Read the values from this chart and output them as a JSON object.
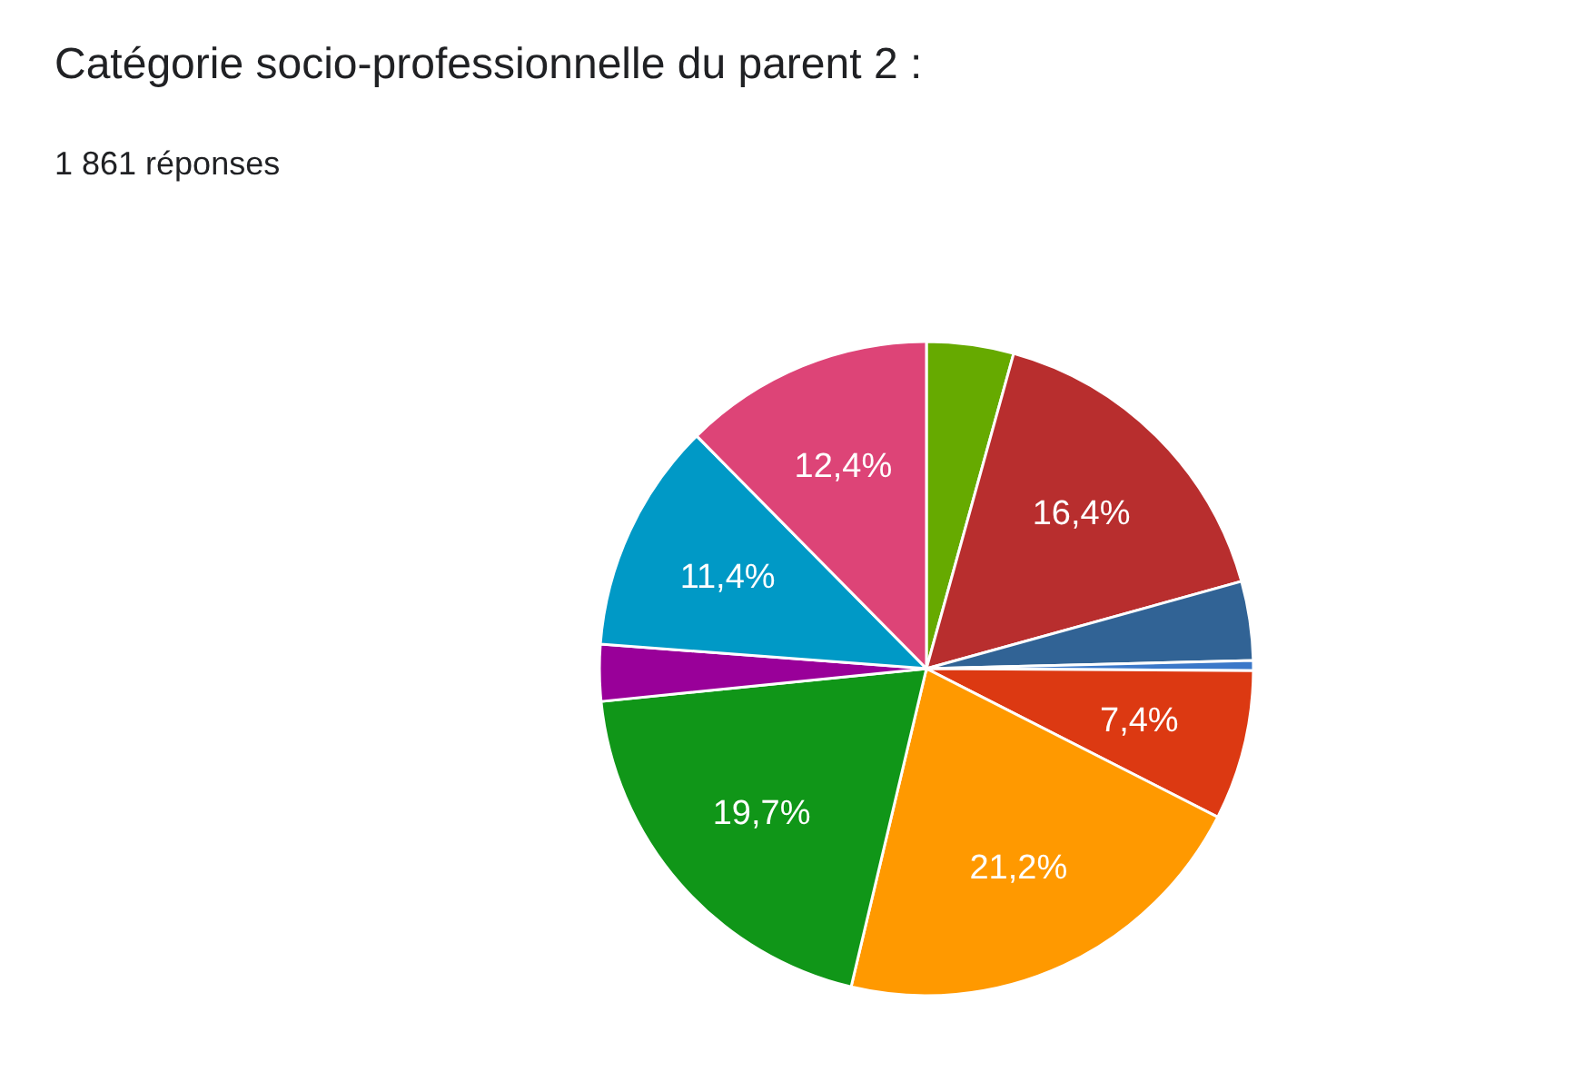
{
  "chart_data": {
    "type": "pie",
    "title": "Catégorie socio-professionnelle du parent 2 :",
    "subtitle": "1 861 réponses",
    "categories": [
      null,
      null,
      null,
      null,
      null,
      null,
      null,
      null,
      null,
      null
    ],
    "values": [
      4.3,
      16.4,
      3.9,
      0.5,
      7.4,
      21.2,
      19.7,
      2.8,
      11.4,
      12.4
    ],
    "colors": [
      "#66aa00",
      "#b82e2e",
      "#316395",
      "#3b78c9",
      "#dc3912",
      "#ff9900",
      "#109618",
      "#990099",
      "#0099c6",
      "#dd4477"
    ],
    "value_labels": [
      null,
      "16,4%",
      null,
      null,
      "7,4%",
      "21,2%",
      "19,7%",
      null,
      "11,4%",
      "12,4%"
    ]
  }
}
